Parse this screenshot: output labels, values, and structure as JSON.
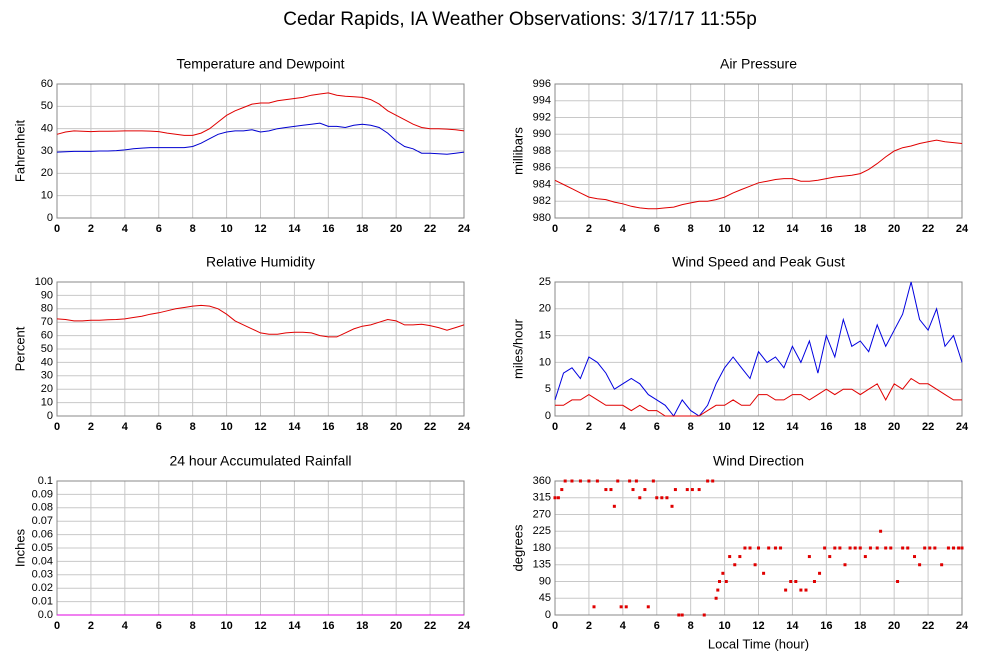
{
  "title": "Cedar Rapids, IA Weather Observations: 3/17/17 11:55p",
  "chart_data": [
    {
      "type": "line",
      "title": "Temperature and Dewpoint",
      "ylabel": "Fahrenheit",
      "x": [
        0,
        0.5,
        1,
        1.5,
        2,
        2.5,
        3,
        3.5,
        4,
        4.5,
        5,
        5.5,
        6,
        6.5,
        7,
        7.5,
        8,
        8.5,
        9,
        9.5,
        10,
        10.5,
        11,
        11.5,
        12,
        12.5,
        13,
        13.5,
        14,
        14.5,
        15,
        15.5,
        16,
        16.5,
        17,
        17.5,
        18,
        18.5,
        19,
        19.5,
        20,
        20.5,
        21,
        21.5,
        22,
        22.5,
        23,
        23.5,
        24
      ],
      "series": [
        {
          "color": "#e00000",
          "values": [
            37.5,
            38.5,
            39,
            38.8,
            38.7,
            38.8,
            38.8,
            38.9,
            39,
            39,
            39,
            38.9,
            38.7,
            38,
            37.5,
            37,
            37,
            38,
            40,
            43,
            46,
            48,
            49.5,
            51,
            51.5,
            51.5,
            52.5,
            53,
            53.5,
            54,
            55,
            55.5,
            56,
            55,
            54.5,
            54.3,
            54,
            53,
            51,
            48,
            46,
            44,
            42,
            40.5,
            40,
            40,
            39.8,
            39.5,
            39
          ]
        },
        {
          "color": "#0000d0",
          "values": [
            29.5,
            29.7,
            29.8,
            29.8,
            29.8,
            30,
            30,
            30.2,
            30.5,
            31,
            31.3,
            31.5,
            31.5,
            31.5,
            31.5,
            31.5,
            32,
            33.5,
            35.5,
            37.5,
            38.5,
            39,
            39,
            39.5,
            38.5,
            39,
            40,
            40.5,
            41,
            41.5,
            42,
            42.5,
            41,
            41,
            40.5,
            41.5,
            42,
            41.5,
            40.5,
            38,
            34.5,
            32,
            31,
            29,
            29,
            28.8,
            28.5,
            29,
            29.5
          ]
        }
      ],
      "xlim": [
        0,
        24
      ],
      "xticks": [
        0,
        2,
        4,
        6,
        8,
        10,
        12,
        14,
        16,
        18,
        20,
        22,
        24
      ],
      "ylim": [
        0,
        60
      ],
      "yticks": [
        0,
        10,
        20,
        30,
        40,
        50,
        60
      ],
      "grid": true
    },
    {
      "type": "line",
      "title": "Air Pressure",
      "ylabel": "millibars",
      "x": [
        0,
        0.5,
        1,
        1.5,
        2,
        2.5,
        3,
        3.5,
        4,
        4.5,
        5,
        5.5,
        6,
        6.5,
        7,
        7.5,
        8,
        8.5,
        9,
        9.5,
        10,
        10.5,
        11,
        11.5,
        12,
        12.5,
        13,
        13.5,
        14,
        14.5,
        15,
        15.5,
        16,
        16.5,
        17,
        17.5,
        18,
        18.5,
        19,
        19.5,
        20,
        20.5,
        21,
        21.5,
        22,
        22.5,
        23,
        23.5,
        24
      ],
      "series": [
        {
          "color": "#e00000",
          "values": [
            984.5,
            984,
            983.5,
            983,
            982.5,
            982.3,
            982.2,
            981.9,
            981.7,
            981.4,
            981.2,
            981.1,
            981.1,
            981.2,
            981.3,
            981.6,
            981.8,
            982,
            982,
            982.2,
            982.5,
            983,
            983.4,
            983.8,
            984.2,
            984.4,
            984.6,
            984.7,
            984.7,
            984.4,
            984.4,
            984.5,
            984.7,
            984.9,
            985,
            985.1,
            985.3,
            985.8,
            986.5,
            987.3,
            988,
            988.4,
            988.6,
            988.9,
            989.1,
            989.3,
            989.1,
            989,
            988.9
          ]
        }
      ],
      "xlim": [
        0,
        24
      ],
      "xticks": [
        0,
        2,
        4,
        6,
        8,
        10,
        12,
        14,
        16,
        18,
        20,
        22,
        24
      ],
      "ylim": [
        980,
        996
      ],
      "yticks": [
        980,
        982,
        984,
        986,
        988,
        990,
        992,
        994,
        996
      ],
      "grid": true
    },
    {
      "type": "line",
      "title": "Relative Humidity",
      "ylabel": "Percent",
      "x": [
        0,
        0.5,
        1,
        1.5,
        2,
        2.5,
        3,
        3.5,
        4,
        4.5,
        5,
        5.5,
        6,
        6.5,
        7,
        7.5,
        8,
        8.5,
        9,
        9.5,
        10,
        10.5,
        11,
        11.5,
        12,
        12.5,
        13,
        13.5,
        14,
        14.5,
        15,
        15.5,
        16,
        16.5,
        17,
        17.5,
        18,
        18.5,
        19,
        19.5,
        20,
        20.5,
        21,
        21.5,
        22,
        22.5,
        23,
        23.5,
        24
      ],
      "series": [
        {
          "color": "#e00000",
          "values": [
            72.5,
            72,
            71,
            71,
            71.5,
            71.5,
            71.8,
            72,
            72.5,
            73.5,
            74.5,
            76,
            77,
            78.5,
            80,
            81,
            82,
            82.5,
            82,
            80,
            76,
            71,
            68,
            65,
            62,
            61,
            61,
            62,
            62.5,
            62.5,
            62,
            60,
            59,
            59,
            62,
            65,
            67,
            68,
            70,
            72,
            71,
            68,
            68,
            68.5,
            67.5,
            66,
            64,
            66,
            68
          ]
        }
      ],
      "xlim": [
        0,
        24
      ],
      "xticks": [
        0,
        2,
        4,
        6,
        8,
        10,
        12,
        14,
        16,
        18,
        20,
        22,
        24
      ],
      "ylim": [
        0,
        100
      ],
      "yticks": [
        0,
        10,
        20,
        30,
        40,
        50,
        60,
        70,
        80,
        90,
        100
      ],
      "grid": true
    },
    {
      "type": "line",
      "title": "Wind Speed and Peak Gust",
      "ylabel": "miles/hour",
      "x": [
        0,
        0.5,
        1,
        1.5,
        2,
        2.5,
        3,
        3.5,
        4,
        4.5,
        5,
        5.5,
        6,
        6.5,
        7,
        7.5,
        8,
        8.5,
        9,
        9.5,
        10,
        10.5,
        11,
        11.5,
        12,
        12.5,
        13,
        13.5,
        14,
        14.5,
        15,
        15.5,
        16,
        16.5,
        17,
        17.5,
        18,
        18.5,
        19,
        19.5,
        20,
        20.5,
        21,
        21.5,
        22,
        22.5,
        23,
        23.5,
        24
      ],
      "series": [
        {
          "color": "#0000e0",
          "values": [
            3,
            8,
            9,
            7,
            11,
            10,
            8,
            5,
            6,
            7,
            6,
            4,
            3,
            2,
            0,
            3,
            1,
            0,
            2,
            6,
            9,
            11,
            9,
            7,
            12,
            10,
            11,
            9,
            13,
            10,
            14,
            8,
            15,
            11,
            18,
            13,
            14,
            12,
            17,
            13,
            16,
            19,
            25,
            18,
            16,
            20,
            13,
            15,
            10
          ]
        },
        {
          "color": "#e00000",
          "values": [
            2,
            2,
            3,
            3,
            4,
            3,
            2,
            2,
            2,
            1,
            2,
            1,
            1,
            0,
            0,
            0,
            0,
            0,
            1,
            2,
            2,
            3,
            2,
            2,
            4,
            4,
            3,
            3,
            4,
            4,
            3,
            4,
            5,
            4,
            5,
            5,
            4,
            5,
            6,
            3,
            6,
            5,
            7,
            6,
            6,
            5,
            4,
            3,
            3
          ]
        }
      ],
      "xlim": [
        0,
        24
      ],
      "xticks": [
        0,
        2,
        4,
        6,
        8,
        10,
        12,
        14,
        16,
        18,
        20,
        22,
        24
      ],
      "ylim": [
        0,
        25
      ],
      "yticks": [
        0,
        5,
        10,
        15,
        20,
        25
      ],
      "grid": true
    },
    {
      "type": "line",
      "title": "24 hour Accumulated Rainfall",
      "ylabel": "Inches",
      "x": [
        0,
        24
      ],
      "series": [
        {
          "color": "#e000e0",
          "values": [
            0,
            0
          ]
        }
      ],
      "xlim": [
        0,
        24
      ],
      "xticks": [
        0,
        2,
        4,
        6,
        8,
        10,
        12,
        14,
        16,
        18,
        20,
        22,
        24
      ],
      "ylim": [
        0,
        0.1
      ],
      "yticks": [
        {
          "value": 0,
          "label": "0.0"
        },
        0.01,
        0.02,
        0.03,
        0.04,
        0.05,
        0.06,
        0.07,
        0.08,
        0.09,
        {
          "value": 0.1,
          "label": "0.1"
        }
      ],
      "grid": true
    },
    {
      "type": "scatter",
      "title": "Wind Direction",
      "ylabel": "degrees",
      "xlabel": "Local Time (hour)",
      "color": "#e00000",
      "x": [
        0,
        0.2,
        0.4,
        0.6,
        1,
        1.5,
        2,
        2.3,
        2.5,
        3,
        3.3,
        3.5,
        3.7,
        3.9,
        4.2,
        4.4,
        4.6,
        4.8,
        5,
        5.3,
        5.5,
        5.8,
        6,
        6.3,
        6.6,
        6.9,
        7.1,
        7.3,
        7.5,
        7.8,
        8.1,
        8.5,
        8.8,
        9,
        9.3,
        9.5,
        9.6,
        9.7,
        9.9,
        10.1,
        10.3,
        10.6,
        10.9,
        11.2,
        11.5,
        11.8,
        12,
        12.3,
        12.6,
        13,
        13.3,
        13.6,
        13.9,
        14.2,
        14.5,
        14.8,
        15,
        15.3,
        15.6,
        15.9,
        16.2,
        16.5,
        16.8,
        17.1,
        17.4,
        17.7,
        18,
        18.3,
        18.6,
        19,
        19.2,
        19.5,
        19.8,
        20.2,
        20.5,
        20.8,
        21.2,
        21.5,
        21.8,
        22.1,
        22.4,
        22.8,
        23.2,
        23.5,
        23.8,
        24
      ],
      "values": [
        315,
        315,
        337,
        360,
        360,
        360,
        360,
        22,
        360,
        337,
        337,
        292,
        360,
        22,
        22,
        360,
        337,
        360,
        315,
        337,
        22,
        360,
        315,
        315,
        315,
        292,
        337,
        0,
        0,
        337,
        337,
        337,
        0,
        360,
        360,
        45,
        67,
        90,
        112,
        90,
        157,
        135,
        157,
        180,
        180,
        135,
        180,
        112,
        180,
        180,
        180,
        67,
        90,
        90,
        67,
        67,
        157,
        90,
        112,
        180,
        157,
        180,
        180,
        135,
        180,
        180,
        180,
        157,
        180,
        180,
        225,
        180,
        180,
        90,
        180,
        180,
        157,
        135,
        180,
        180,
        180,
        135,
        180,
        180,
        180,
        180
      ],
      "xlim": [
        0,
        24
      ],
      "xticks": [
        0,
        2,
        4,
        6,
        8,
        10,
        12,
        14,
        16,
        18,
        20,
        22,
        24
      ],
      "ylim": [
        0,
        360
      ],
      "yticks": [
        0,
        45,
        90,
        135,
        180,
        225,
        270,
        315,
        360
      ],
      "grid": true
    }
  ]
}
